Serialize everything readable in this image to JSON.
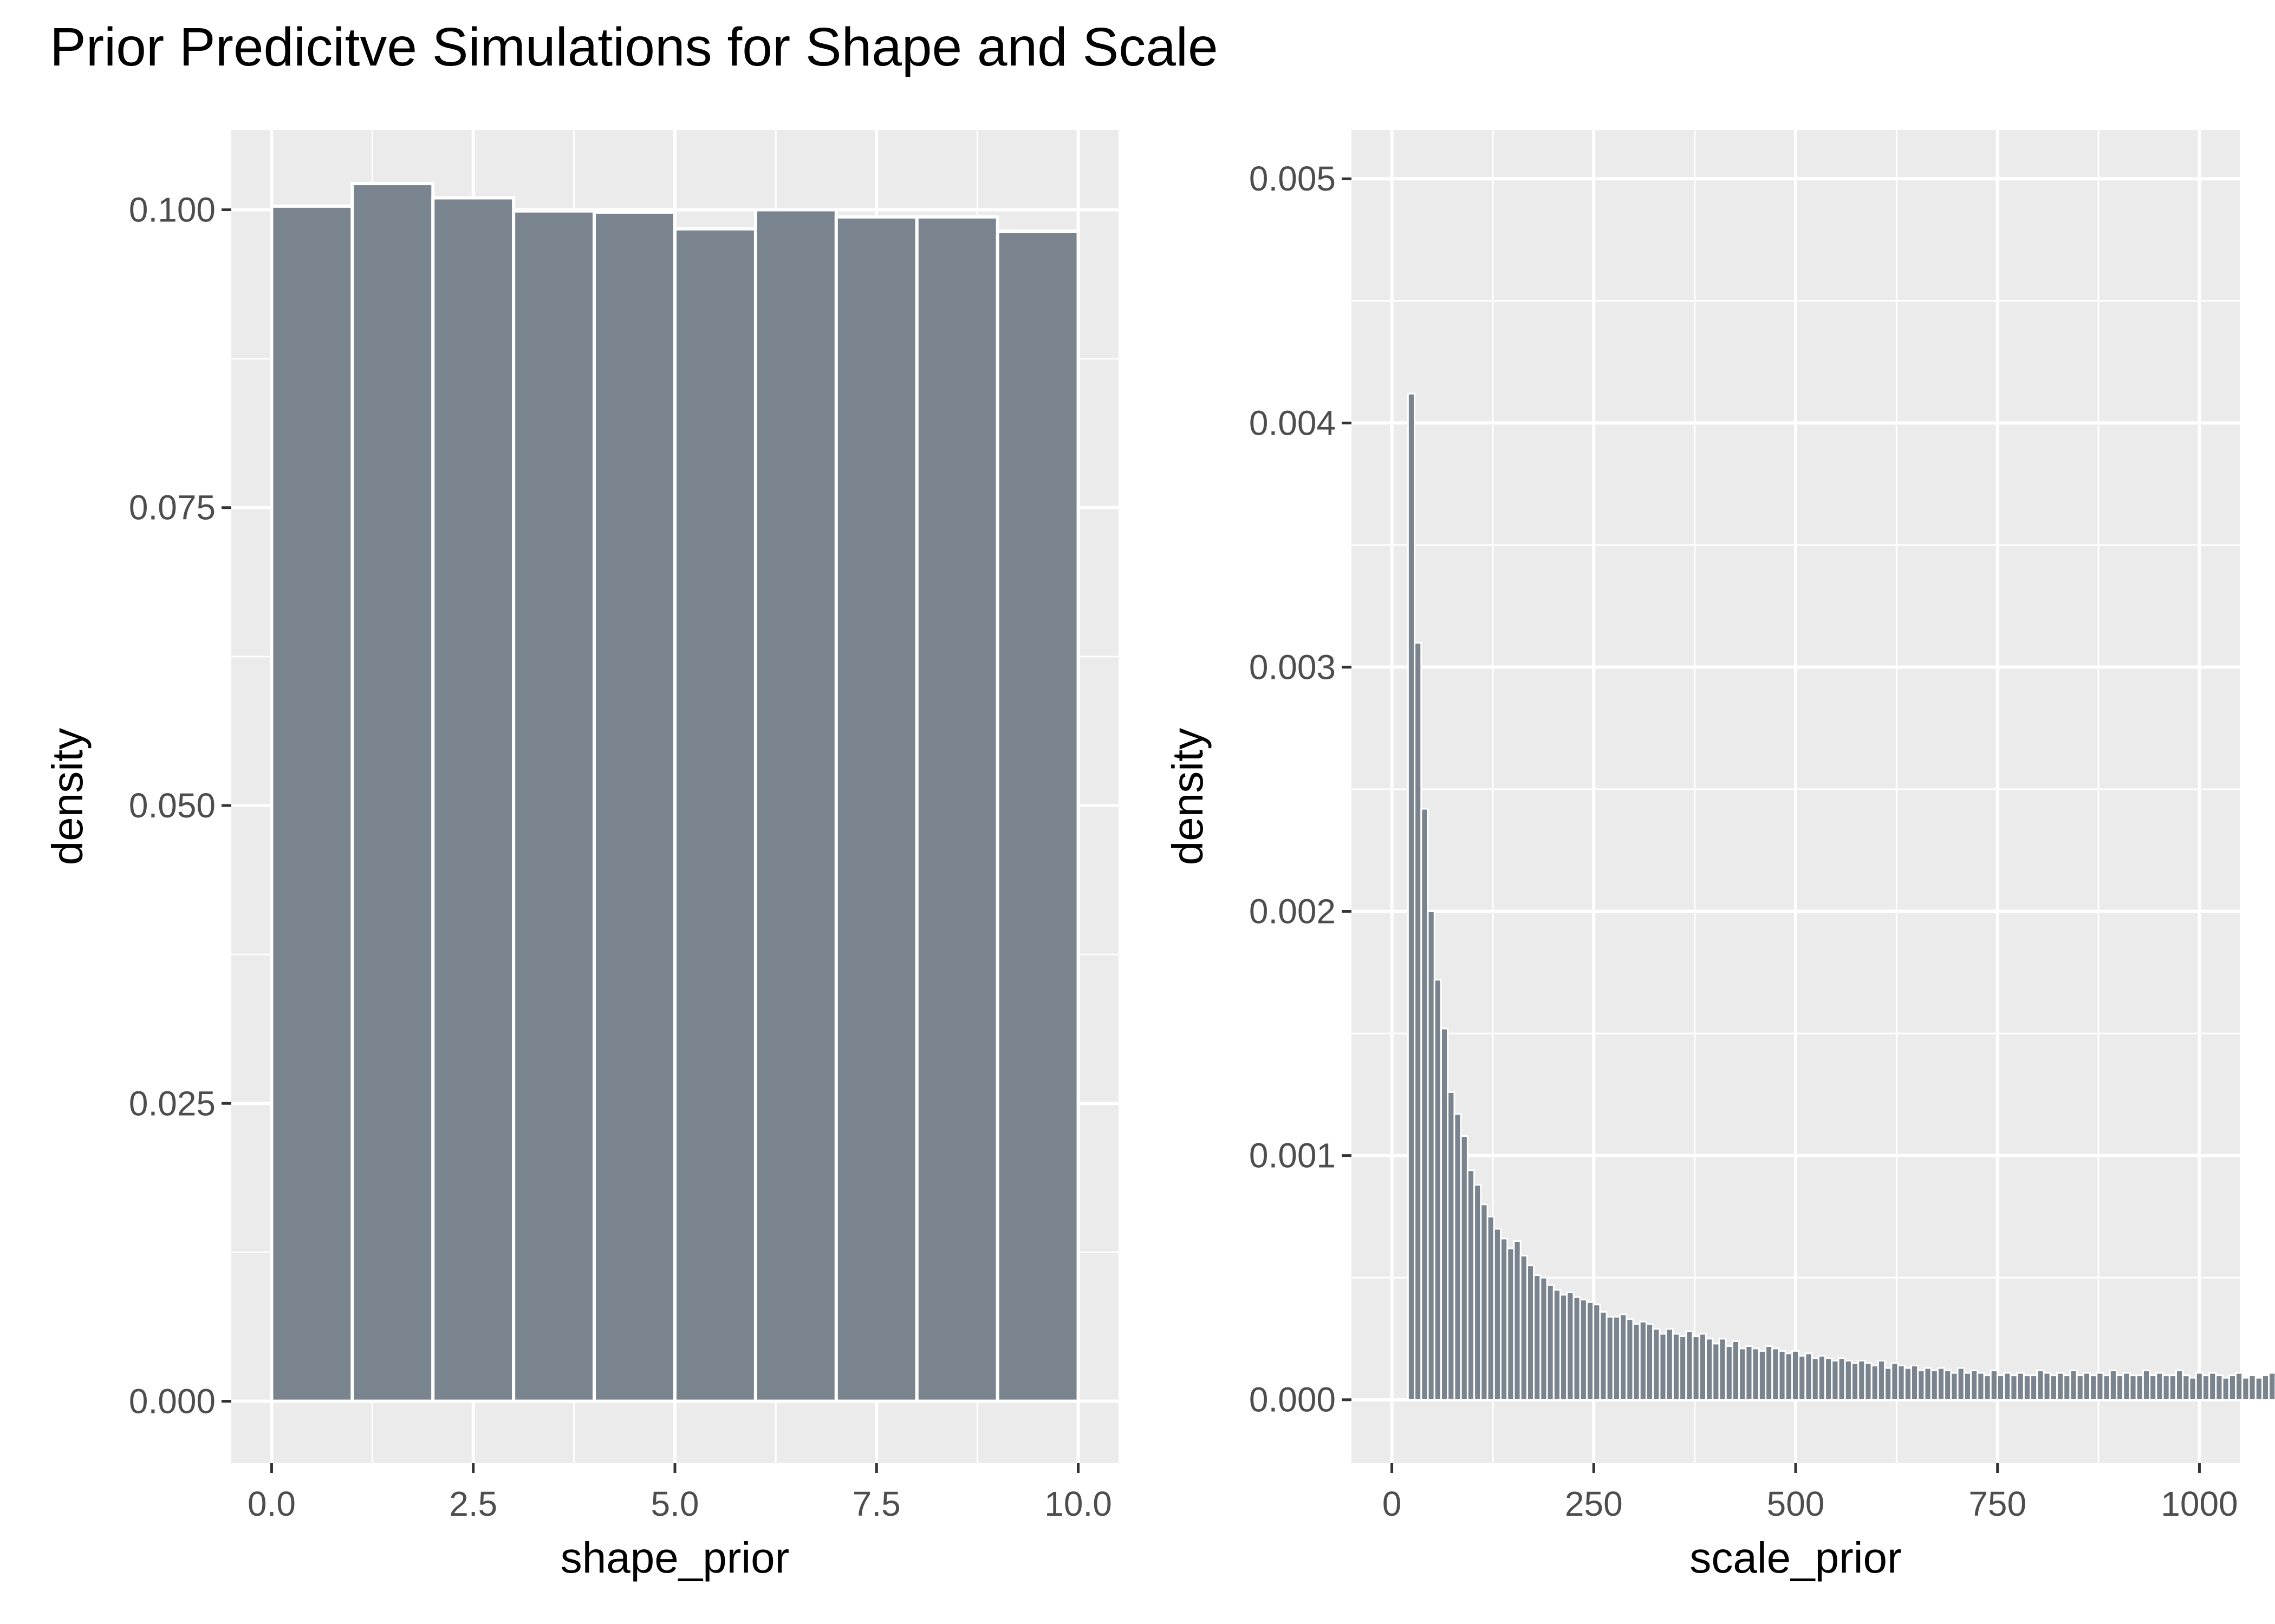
{
  "title": "Prior Predicitve Simulations for Shape and Scale",
  "style": {
    "panel_bg": "#EBEBEB",
    "grid": "#FFFFFF",
    "bar_fill": "#7A848E",
    "bar_stroke": "#FFFFFF",
    "tick_color": "#333333",
    "tick_text": "#4D4D4D"
  },
  "chart_data": [
    {
      "type": "bar",
      "xlabel": "shape_prior",
      "ylabel": "density",
      "xlim": [
        -0.5,
        10.5
      ],
      "ylim": [
        -0.0052,
        0.1067
      ],
      "x_ticks": [
        0,
        2.5,
        5,
        7.5,
        10
      ],
      "x_tick_labels": [
        "0.0",
        "2.5",
        "5.0",
        "7.5",
        "10.0"
      ],
      "y_ticks": [
        0,
        0.025,
        0.05,
        0.075,
        0.1
      ],
      "y_tick_labels": [
        "0.000",
        "0.025",
        "0.050",
        "0.075",
        "0.100"
      ],
      "grid": true,
      "bins": [
        {
          "x0": 0,
          "x1": 1,
          "y": 0.1003
        },
        {
          "x0": 1,
          "x1": 2,
          "y": 0.1022
        },
        {
          "x0": 2,
          "x1": 3,
          "y": 0.101
        },
        {
          "x0": 3,
          "x1": 4,
          "y": 0.0999
        },
        {
          "x0": 4,
          "x1": 5,
          "y": 0.0998
        },
        {
          "x0": 5,
          "x1": 6,
          "y": 0.0984
        },
        {
          "x0": 6,
          "x1": 7,
          "y": 0.1
        },
        {
          "x0": 7,
          "x1": 8,
          "y": 0.0994
        },
        {
          "x0": 8,
          "x1": 9,
          "y": 0.0994
        },
        {
          "x0": 9,
          "x1": 10,
          "y": 0.0982
        }
      ]
    },
    {
      "type": "bar",
      "xlabel": "scale_prior",
      "ylabel": "density",
      "xlim": [
        -50,
        1050
      ],
      "ylim": [
        -0.00026,
        0.0052
      ],
      "x_ticks": [
        0,
        250,
        500,
        750,
        1000
      ],
      "x_tick_labels": [
        "0",
        "250",
        "500",
        "750",
        "1000"
      ],
      "y_ticks": [
        0,
        0.001,
        0.002,
        0.003,
        0.004,
        0.005
      ],
      "y_tick_labels": [
        "0.000",
        "0.001",
        "0.002",
        "0.003",
        "0.004",
        "0.005"
      ],
      "grid": true,
      "bin_start": 20,
      "bin_width": 8.2,
      "values": [
        0.00412,
        0.0031,
        0.00242,
        0.002,
        0.00172,
        0.00152,
        0.00126,
        0.00117,
        0.00108,
        0.00094,
        0.00088,
        0.0008,
        0.00075,
        0.0007,
        0.00066,
        0.00062,
        0.00065,
        0.00059,
        0.00055,
        0.00051,
        0.0005,
        0.00047,
        0.00045,
        0.00043,
        0.00044,
        0.00042,
        0.00041,
        0.0004,
        0.00039,
        0.00036,
        0.00034,
        0.00034,
        0.00035,
        0.00033,
        0.00031,
        0.00032,
        0.00031,
        0.00029,
        0.00027,
        0.00029,
        0.00027,
        0.00026,
        0.00028,
        0.00026,
        0.00027,
        0.00025,
        0.00023,
        0.00025,
        0.00022,
        0.00024,
        0.00021,
        0.00022,
        0.00021,
        0.0002,
        0.00022,
        0.00021,
        0.0002,
        0.00019,
        0.0002,
        0.00018,
        0.00019,
        0.00017,
        0.00018,
        0.00017,
        0.00016,
        0.00017,
        0.00016,
        0.00015,
        0.00016,
        0.00015,
        0.00014,
        0.00016,
        0.00013,
        0.00015,
        0.00014,
        0.00013,
        0.00014,
        0.00012,
        0.00013,
        0.00012,
        0.00013,
        0.00012,
        0.00011,
        0.00013,
        0.00011,
        0.00012,
        0.00011,
        0.0001,
        0.00012,
        0.0001,
        0.00011,
        0.0001,
        0.00011,
        0.0001,
        0.0001,
        0.00012,
        0.00011,
        0.0001,
        0.00011,
        0.0001,
        0.00012,
        0.0001,
        0.00011,
        0.0001,
        0.00011,
        0.0001,
        0.00012,
        0.0001,
        0.00011,
        0.0001,
        0.0001,
        0.00012,
        0.0001,
        0.00011,
        0.0001,
        0.0001,
        0.00012,
        0.0001,
        9e-05,
        0.00011,
        0.0001,
        0.00011,
        0.0001,
        9e-05,
        0.0001,
        0.00011,
        9e-05,
        0.0001,
        9e-05,
        0.0001,
        0.00011,
        9e-05,
        0.0001,
        9e-05,
        0.0001,
        0.00011,
        9e-05,
        0.0001,
        9e-05,
        0.0001,
        0.00011,
        9e-05,
        0.0001,
        9e-05
      ]
    }
  ]
}
